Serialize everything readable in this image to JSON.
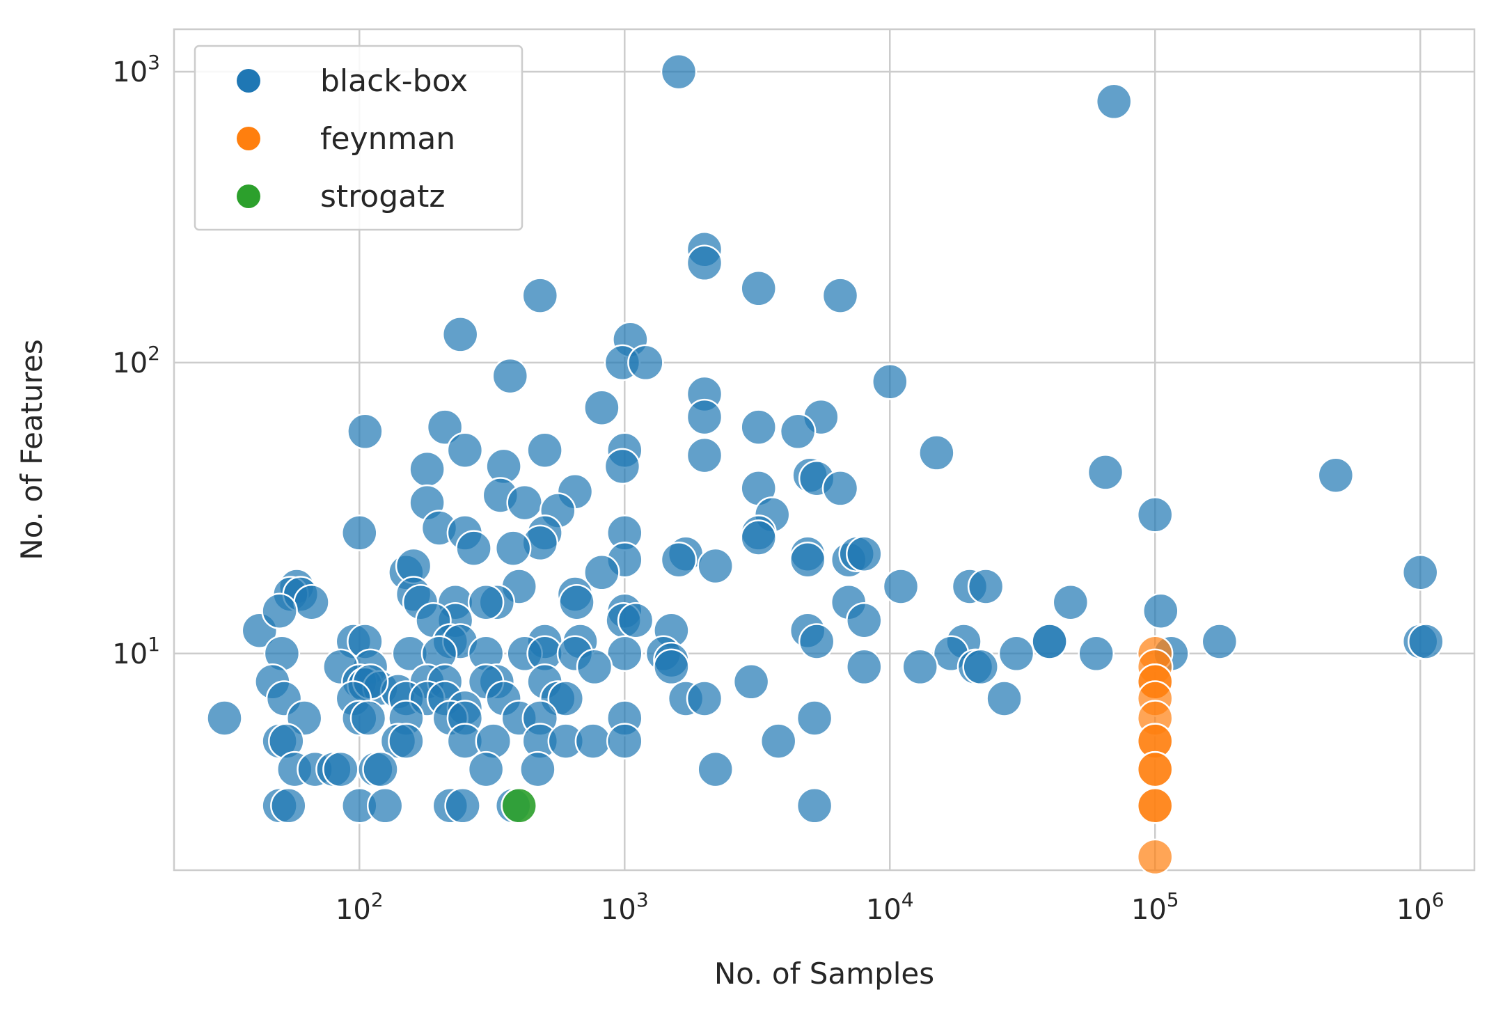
{
  "chart_data": {
    "type": "scatter",
    "xlabel": "No. of Samples",
    "ylabel": "No. of Features",
    "xscale": "log",
    "yscale": "log",
    "xlim": [
      20,
      1600000
    ],
    "ylim": [
      1.8,
      1400
    ],
    "xticks": [
      100,
      1000,
      10000,
      100000,
      1000000
    ],
    "yticks": [
      10,
      100,
      1000
    ],
    "grid": true,
    "legend_position": "top-left",
    "series": [
      {
        "name": "black-box",
        "color": "#1f77b4",
        "points": [
          [
            1600,
            1000
          ],
          [
            70000,
            790
          ],
          [
            2000,
            245
          ],
          [
            2000,
            220
          ],
          [
            3200,
            180
          ],
          [
            480,
            170
          ],
          [
            6500,
            170
          ],
          [
            240,
            125
          ],
          [
            1050,
            120
          ],
          [
            980,
            100
          ],
          [
            1200,
            100
          ],
          [
            370,
            90
          ],
          [
            10000,
            86
          ],
          [
            2000,
            78
          ],
          [
            820,
            70
          ],
          [
            2000,
            65
          ],
          [
            5500,
            65
          ],
          [
            105,
            58
          ],
          [
            3200,
            60
          ],
          [
            4500,
            58
          ],
          [
            210,
            60
          ],
          [
            250,
            50
          ],
          [
            500,
            50
          ],
          [
            1000,
            50
          ],
          [
            15000,
            49
          ],
          [
            2000,
            48
          ],
          [
            65000,
            42
          ],
          [
            480000,
            41
          ],
          [
            180,
            43
          ],
          [
            350,
            44
          ],
          [
            980,
            44
          ],
          [
            5000,
            41
          ],
          [
            5300,
            40
          ],
          [
            650,
            36
          ],
          [
            3200,
            37
          ],
          [
            6500,
            37
          ],
          [
            340,
            35
          ],
          [
            420,
            33
          ],
          [
            180,
            33
          ],
          [
            560,
            31
          ],
          [
            3600,
            30
          ],
          [
            100000,
            30
          ],
          [
            200,
            27
          ],
          [
            100,
            26
          ],
          [
            250,
            26
          ],
          [
            500,
            26
          ],
          [
            1000,
            26
          ],
          [
            3200,
            26
          ],
          [
            3200,
            25
          ],
          [
            480,
            24
          ],
          [
            270,
            23
          ],
          [
            380,
            23
          ],
          [
            4900,
            22
          ],
          [
            1700,
            22
          ],
          [
            1600,
            21
          ],
          [
            2200,
            20
          ],
          [
            7000,
            21
          ],
          [
            7500,
            22
          ],
          [
            8000,
            22
          ],
          [
            1000,
            21
          ],
          [
            4900,
            21
          ],
          [
            1000000,
            19
          ],
          [
            820,
            19
          ],
          [
            150,
            19
          ],
          [
            160,
            20
          ],
          [
            400,
            17
          ],
          [
            58,
            17
          ],
          [
            55,
            16
          ],
          [
            60,
            16
          ],
          [
            66,
            15
          ],
          [
            160,
            16
          ],
          [
            170,
            15
          ],
          [
            330,
            15
          ],
          [
            650,
            16
          ],
          [
            660,
            15
          ],
          [
            11000,
            17
          ],
          [
            20000,
            17
          ],
          [
            23000,
            17
          ],
          [
            48000,
            15
          ],
          [
            7000,
            15
          ],
          [
            42,
            12
          ],
          [
            50,
            14
          ],
          [
            105000,
            14
          ],
          [
            230,
            15
          ],
          [
            300,
            15
          ],
          [
            230,
            13
          ],
          [
            1000,
            14
          ],
          [
            190,
            13
          ],
          [
            990,
            13
          ],
          [
            1100,
            13
          ],
          [
            8000,
            13
          ],
          [
            1500,
            12
          ],
          [
            4900,
            12
          ],
          [
            220,
            11
          ],
          [
            240,
            11
          ],
          [
            95,
            11
          ],
          [
            105,
            11
          ],
          [
            175000,
            11
          ],
          [
            1000000,
            11
          ],
          [
            1050000,
            11
          ],
          [
            40000,
            11
          ],
          [
            40000,
            11
          ],
          [
            19000,
            11
          ],
          [
            5300,
            11
          ],
          [
            500,
            11
          ],
          [
            680,
            11
          ],
          [
            1400,
            10
          ],
          [
            51,
            10
          ],
          [
            155,
            10
          ],
          [
            420,
            10
          ],
          [
            1000,
            10
          ],
          [
            1500,
            9.5
          ],
          [
            17000,
            10
          ],
          [
            30000,
            10
          ],
          [
            60000,
            10
          ],
          [
            115000,
            10
          ],
          [
            200,
            10
          ],
          [
            300,
            10
          ],
          [
            500,
            10
          ],
          [
            650,
            10
          ],
          [
            110,
            9
          ],
          [
            85,
            9
          ],
          [
            1500,
            9
          ],
          [
            770,
            9
          ],
          [
            8000,
            9
          ],
          [
            13000,
            9
          ],
          [
            21000,
            9
          ],
          [
            22000,
            9
          ],
          [
            47,
            8
          ],
          [
            100,
            8
          ],
          [
            105,
            7.8
          ],
          [
            120,
            7.6
          ],
          [
            140,
            7.4
          ],
          [
            180,
            8
          ],
          [
            210,
            8
          ],
          [
            330,
            8
          ],
          [
            300,
            8
          ],
          [
            500,
            8
          ],
          [
            3000,
            8
          ],
          [
            110,
            8
          ],
          [
            52,
            7
          ],
          [
            95,
            7
          ],
          [
            150,
            7
          ],
          [
            180,
            7
          ],
          [
            210,
            7
          ],
          [
            250,
            6.5
          ],
          [
            350,
            7
          ],
          [
            560,
            7
          ],
          [
            600,
            7
          ],
          [
            1700,
            7
          ],
          [
            2000,
            7
          ],
          [
            27000,
            7
          ],
          [
            31,
            6
          ],
          [
            62,
            6
          ],
          [
            100,
            6
          ],
          [
            108,
            6
          ],
          [
            150,
            6
          ],
          [
            220,
            6
          ],
          [
            250,
            6
          ],
          [
            400,
            6
          ],
          [
            480,
            6
          ],
          [
            1000,
            6
          ],
          [
            5200,
            6
          ],
          [
            50,
            5
          ],
          [
            53,
            5
          ],
          [
            140,
            5
          ],
          [
            150,
            5
          ],
          [
            250,
            5
          ],
          [
            320,
            5
          ],
          [
            480,
            5
          ],
          [
            600,
            5
          ],
          [
            760,
            5
          ],
          [
            1000,
            5
          ],
          [
            3800,
            5
          ],
          [
            57,
            4
          ],
          [
            68,
            4
          ],
          [
            80,
            4
          ],
          [
            85,
            4
          ],
          [
            115,
            4
          ],
          [
            120,
            4
          ],
          [
            300,
            4
          ],
          [
            470,
            4
          ],
          [
            2200,
            4
          ],
          [
            50,
            3
          ],
          [
            54,
            3
          ],
          [
            100,
            3
          ],
          [
            125,
            3
          ],
          [
            220,
            3
          ],
          [
            245,
            3
          ],
          [
            380,
            3
          ],
          [
            5200,
            3
          ]
        ]
      },
      {
        "name": "feynman",
        "color": "#ff7f0e",
        "points": [
          [
            100000,
            10
          ],
          [
            100000,
            9
          ],
          [
            100000,
            8
          ],
          [
            100000,
            8
          ],
          [
            100000,
            7
          ],
          [
            100000,
            6
          ],
          [
            100000,
            5
          ],
          [
            100000,
            5
          ],
          [
            100000,
            4
          ],
          [
            100000,
            4
          ],
          [
            100000,
            3
          ],
          [
            100000,
            3
          ],
          [
            100000,
            2
          ]
        ]
      },
      {
        "name": "strogatz",
        "color": "#2ca02c",
        "points": [
          [
            400,
            3
          ],
          [
            400,
            3
          ]
        ]
      }
    ]
  }
}
